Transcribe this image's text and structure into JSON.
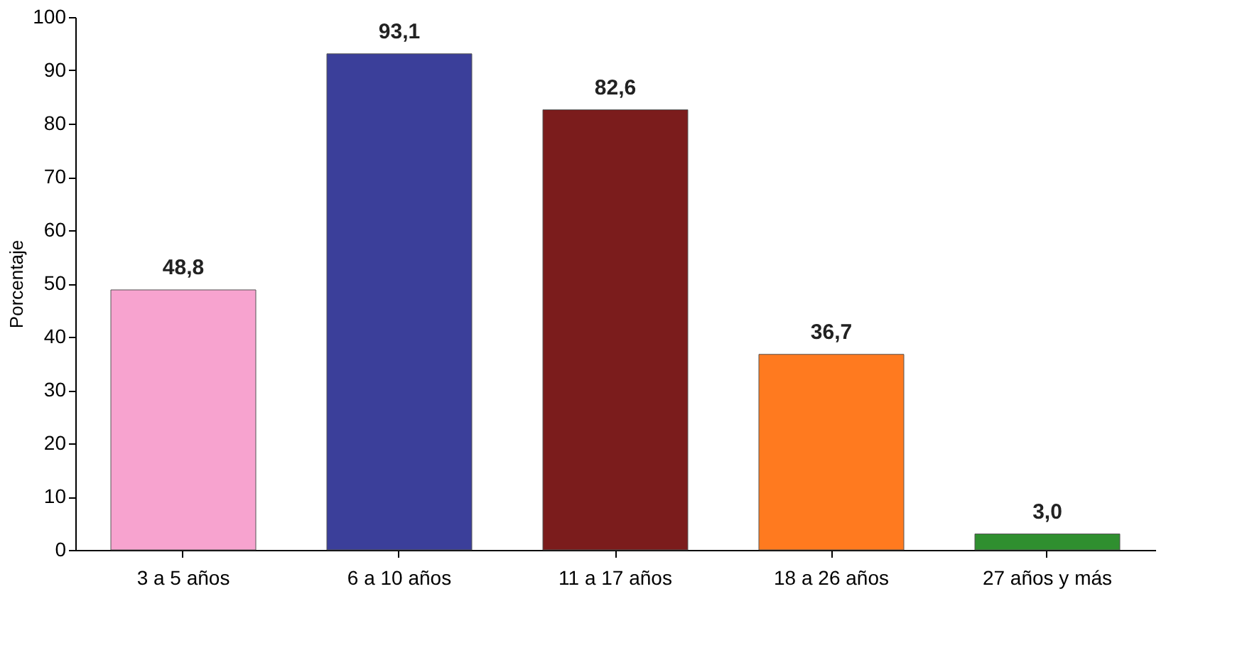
{
  "chart_data": {
    "type": "bar",
    "ylabel": "Porcentaje",
    "categories": [
      "3 a 5 años",
      "6 a 10 años",
      "11 a 17 años",
      "18 a 26 años",
      "27 años y más"
    ],
    "values": [
      48.8,
      93.1,
      82.6,
      36.7,
      3.0
    ],
    "value_labels": [
      "48,8",
      "93,1",
      "82,6",
      "36,7",
      "3,0"
    ],
    "colors": [
      "#f7a3cf",
      "#3b3f9a",
      "#7b1c1c",
      "#ff7a1f",
      "#2f8f2f"
    ],
    "ylim": [
      0,
      100
    ],
    "yticks": [
      0,
      10,
      20,
      30,
      40,
      50,
      60,
      70,
      80,
      90,
      100
    ],
    "grid": false
  }
}
